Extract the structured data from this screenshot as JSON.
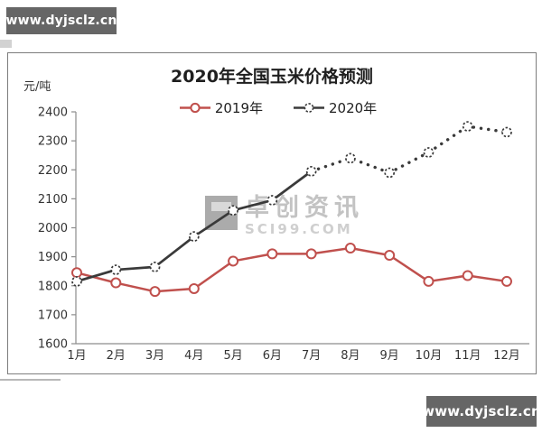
{
  "watermarks": {
    "site": "www.dyjsclz.cn",
    "brand_name": "卓创资讯",
    "brand_site": "SCI99.COM"
  },
  "chart_data": {
    "type": "line",
    "title": "2020年全国玉米价格预测",
    "y_unit": "元/吨",
    "categories": [
      "1月",
      "2月",
      "3月",
      "4月",
      "5月",
      "6月",
      "7月",
      "8月",
      "9月",
      "10月",
      "11月",
      "12月"
    ],
    "series": [
      {
        "name": "2019年",
        "color": "#c0504d",
        "line_style": "solid",
        "marker": "circle-solid-outline",
        "values": [
          1845,
          1810,
          1780,
          1790,
          1885,
          1910,
          1910,
          1930,
          1905,
          1815,
          1835,
          1815
        ]
      },
      {
        "name": "2020年",
        "color": "#3a3a3a",
        "line_style": "solid-then-dotted",
        "dotted_from": "7月",
        "marker": "circle-dashed-outline",
        "values": [
          1815,
          1855,
          1865,
          1970,
          2060,
          2095,
          2195,
          2240,
          2190,
          2260,
          2350,
          2330
        ]
      }
    ],
    "ylim": [
      1600,
      2400
    ],
    "y_tick_step": 100,
    "grid": false,
    "legend_position": "top"
  }
}
